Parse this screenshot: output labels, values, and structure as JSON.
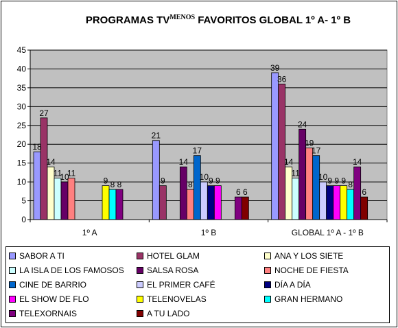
{
  "chart_data": {
    "type": "bar",
    "title": "PROGRAMAS TV",
    "title_super": "MENOS",
    "title_rest": " FAVORITOS GLOBAL 1º A- 1º B",
    "categories": [
      "1º A",
      "1º B",
      "GLOBAL 1º A - 1º B"
    ],
    "ylim": [
      0,
      45
    ],
    "yticks": [
      0,
      5,
      10,
      15,
      20,
      25,
      30,
      35,
      40,
      45
    ],
    "grid": true,
    "legend_position": "bottom",
    "series": [
      {
        "name": "SABOR A TI",
        "color": "#9999ff",
        "values": [
          18,
          21,
          39
        ]
      },
      {
        "name": "HOTEL GLAM",
        "color": "#993366",
        "values": [
          27,
          9,
          36
        ]
      },
      {
        "name": "ANA Y LOS SIETE",
        "color": "#ffffcc",
        "values": [
          14,
          null,
          14
        ]
      },
      {
        "name": "LA ISLA DE LOS FAMOSOS",
        "color": "#ccffff",
        "values": [
          11,
          null,
          11
        ]
      },
      {
        "name": "SALSA ROSA",
        "color": "#660066",
        "values": [
          10,
          14,
          24
        ]
      },
      {
        "name": "NOCHE DE FIESTA",
        "color": "#ff8080",
        "values": [
          11,
          8,
          19
        ]
      },
      {
        "name": "CINE DE BARRIO",
        "color": "#0066cc",
        "values": [
          null,
          17,
          17
        ]
      },
      {
        "name": "EL PRIMER CAFÉ",
        "color": "#ccccff",
        "values": [
          null,
          10,
          10
        ]
      },
      {
        "name": "DÍA A DÍA",
        "color": "#000080",
        "values": [
          null,
          9,
          9
        ]
      },
      {
        "name": "EL SHOW DE FLO",
        "color": "#ff00ff",
        "values": [
          null,
          9,
          9
        ]
      },
      {
        "name": "TELENOVELAS",
        "color": "#ffff00",
        "values": [
          9,
          null,
          9
        ]
      },
      {
        "name": "GRAN HERMANO",
        "color": "#00ffff",
        "values": [
          8,
          null,
          8
        ]
      },
      {
        "name": "TELEXORNAIS",
        "color": "#800080",
        "values": [
          8,
          6,
          14
        ]
      },
      {
        "name": "A TU LADO",
        "color": "#800000",
        "values": [
          null,
          6,
          6
        ]
      }
    ]
  }
}
